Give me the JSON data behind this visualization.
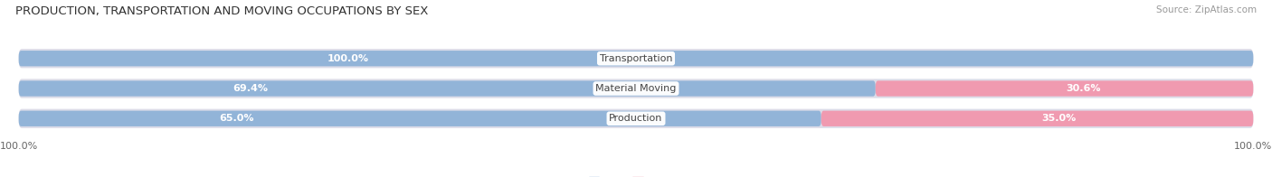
{
  "title": "PRODUCTION, TRANSPORTATION AND MOVING OCCUPATIONS BY SEX",
  "source": "Source: ZipAtlas.com",
  "categories": [
    "Transportation",
    "Material Moving",
    "Production"
  ],
  "male_values": [
    100.0,
    69.4,
    65.0
  ],
  "female_values": [
    0.0,
    30.6,
    35.0
  ],
  "male_color": "#92b4d8",
  "female_color": "#f09ab0",
  "bar_bg_color": "#dcdce8",
  "label_color_white": "#ffffff",
  "label_color_dark": "#555555",
  "cat_label_color": "#444444",
  "title_fontsize": 9.5,
  "source_fontsize": 7.5,
  "bar_label_fontsize": 8,
  "cat_fontsize": 8,
  "axis_label_fontsize": 8,
  "background_color": "#ffffff",
  "x_axis_left_label": "100.0%",
  "x_axis_right_label": "100.0%",
  "bar_height": 0.52,
  "bar_gap": 1.0
}
